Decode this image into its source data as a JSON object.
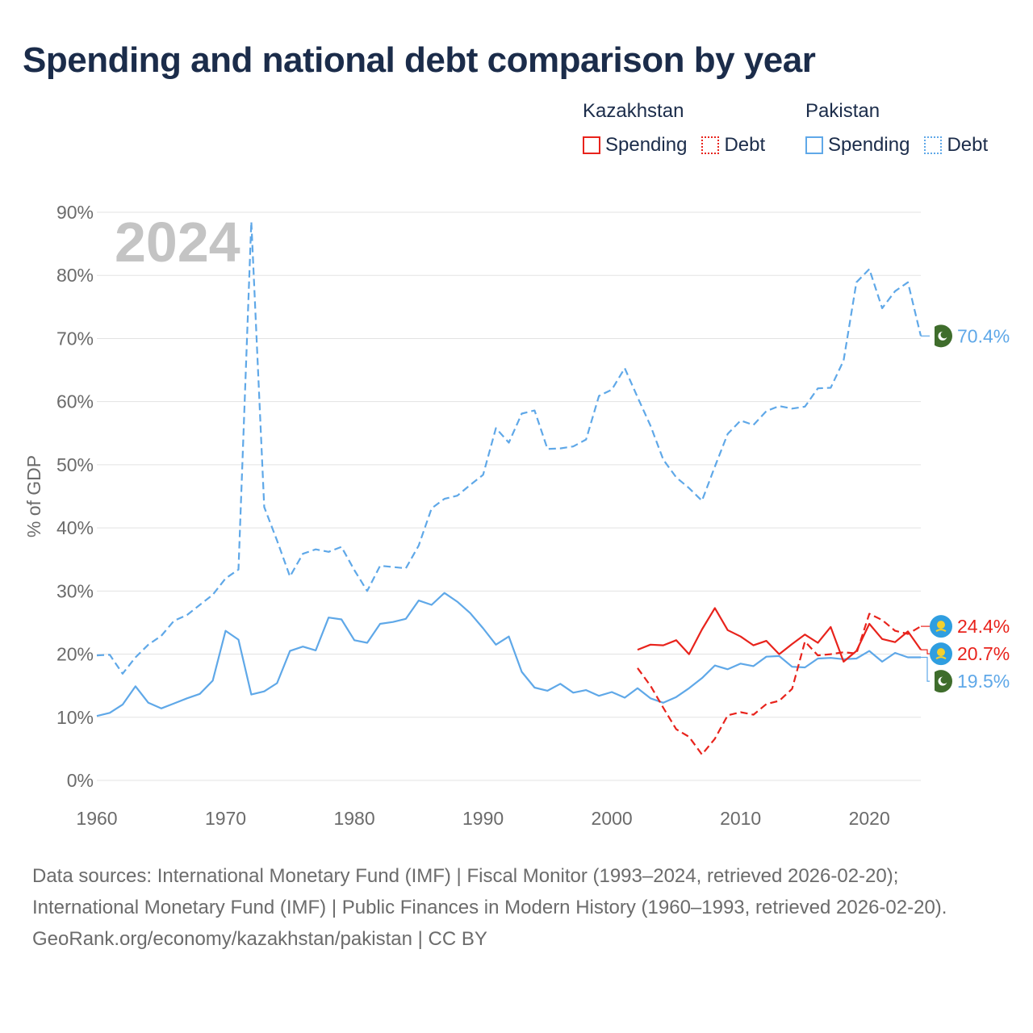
{
  "title": "Spending and national debt comparison by year",
  "legend": {
    "groups": [
      {
        "name": "Kazakhstan",
        "color": "#e8231c",
        "items": [
          {
            "label": "Spending",
            "style": "solid"
          },
          {
            "label": "Debt",
            "style": "dotted"
          }
        ]
      },
      {
        "name": "Pakistan",
        "color": "#5fa8e8",
        "items": [
          {
            "label": "Spending",
            "style": "solid"
          },
          {
            "label": "Debt",
            "style": "dotted"
          }
        ]
      }
    ]
  },
  "footer": {
    "sources": "Data sources: International Monetary Fund (IMF) | Fiscal Monitor (1993–2024, retrieved 2026-02-20); International Monetary Fund (IMF) | Public Finances in Modern History (1960–1993, retrieved 2026-02-20).",
    "credit": "GeoRank.org/economy/kazakhstan/pakistan | CC BY"
  },
  "chart_data": {
    "type": "line",
    "ylabel": "% of GDP",
    "xlabel": "",
    "year_label": "2024",
    "xlim": [
      1960,
      2024
    ],
    "ylim": [
      0,
      90
    ],
    "x_ticks": [
      1960,
      1970,
      1980,
      1990,
      2000,
      2010,
      2020
    ],
    "y_ticks": [
      0,
      10,
      20,
      30,
      40,
      50,
      60,
      70,
      80,
      90
    ],
    "y_tick_suffix": "%",
    "grid": true,
    "series": [
      {
        "name": "Pakistan Debt",
        "country": "Pakistan",
        "metric": "Debt",
        "color": "#5fa8e8",
        "dash": "dashed",
        "start_year": 1960,
        "end_label": "70.4%",
        "values": [
          19.8,
          19.9,
          16.9,
          19.5,
          21.5,
          22.9,
          25.3,
          26.2,
          27.8,
          29.4,
          32.0,
          33.4,
          88.5,
          43.3,
          38.0,
          32.3,
          35.9,
          36.6,
          36.2,
          37.0,
          33.3,
          30.0,
          34.0,
          33.8,
          33.6,
          37.2,
          43.1,
          44.6,
          45.1,
          46.8,
          48.4,
          55.8,
          53.5,
          58.1,
          58.6,
          52.5,
          52.6,
          52.9,
          54.0,
          60.9,
          61.9,
          65.3,
          60.7,
          56.2,
          50.8,
          48.0,
          46.3,
          44.3,
          49.7,
          54.9,
          57.0,
          56.3,
          58.5,
          59.3,
          58.9,
          59.2,
          62.1,
          62.2,
          66.5,
          78.9,
          81.0,
          74.8,
          77.5,
          78.9,
          70.4
        ]
      },
      {
        "name": "Pakistan Spending",
        "country": "Pakistan",
        "metric": "Spending",
        "color": "#5fa8e8",
        "dash": "solid",
        "start_year": 1960,
        "end_label": "19.5%",
        "values": [
          10.2,
          10.7,
          12.0,
          14.9,
          12.3,
          11.4,
          12.2,
          13.0,
          13.7,
          15.8,
          23.7,
          22.3,
          13.6,
          14.1,
          15.4,
          20.5,
          21.2,
          20.6,
          25.8,
          25.5,
          22.2,
          21.8,
          24.8,
          25.1,
          25.6,
          28.5,
          27.8,
          29.7,
          28.3,
          26.5,
          24.1,
          21.5,
          22.8,
          17.2,
          14.7,
          14.2,
          15.3,
          13.9,
          14.3,
          13.4,
          14.0,
          13.1,
          14.6,
          13.0,
          12.3,
          13.2,
          14.6,
          16.2,
          18.2,
          17.6,
          18.5,
          18.1,
          19.6,
          19.7,
          18.0,
          17.9,
          19.3,
          19.4,
          19.2,
          19.3,
          20.5,
          18.8,
          20.2,
          19.5,
          19.5
        ]
      },
      {
        "name": "Kazakhstan Spending",
        "country": "Kazakhstan",
        "metric": "Spending",
        "color": "#e8231c",
        "dash": "solid",
        "start_year": 2002,
        "end_label": "20.7%",
        "values": [
          20.7,
          21.5,
          21.4,
          22.2,
          20.0,
          23.9,
          27.3,
          23.8,
          22.8,
          21.4,
          22.1,
          20.0,
          21.6,
          23.1,
          21.8,
          24.3,
          18.8,
          20.5,
          24.8,
          22.4,
          21.9,
          23.6,
          20.7
        ]
      },
      {
        "name": "Kazakhstan Debt",
        "country": "Kazakhstan",
        "metric": "Debt",
        "color": "#e8231c",
        "dash": "dashed",
        "start_year": 2002,
        "end_label": "24.4%",
        "values": [
          17.8,
          15.0,
          11.5,
          8.1,
          6.9,
          4.1,
          6.6,
          10.3,
          10.8,
          10.4,
          12.1,
          12.6,
          14.5,
          22.0,
          19.8,
          20.0,
          20.3,
          20.1,
          26.4,
          25.4,
          23.7,
          23.2,
          24.4
        ]
      }
    ]
  }
}
